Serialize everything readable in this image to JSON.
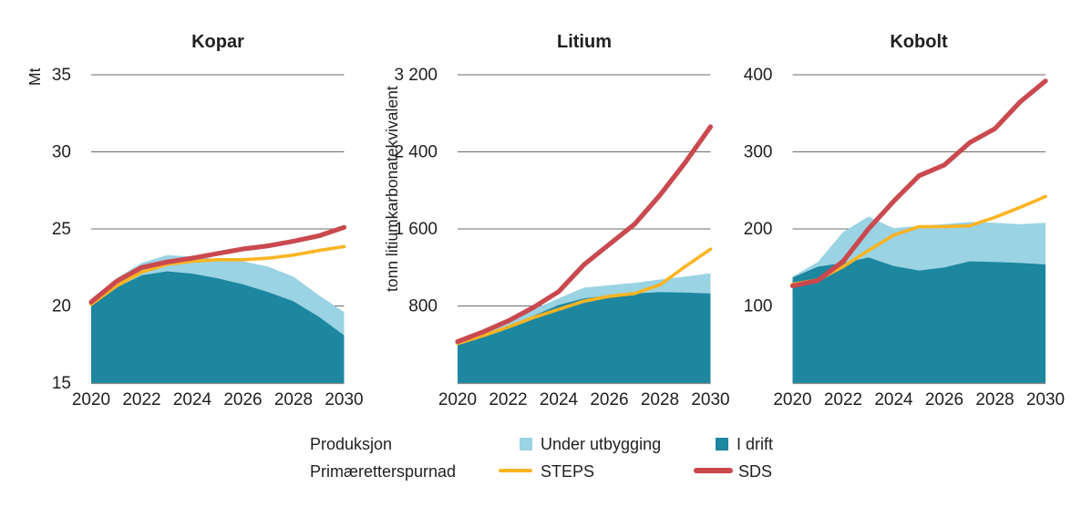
{
  "colors": {
    "background": "#ffffff",
    "text": "#1f1f1f",
    "gridline": "#6b6b6b",
    "baseline": "#8a8a8a",
    "i_drift": "#1d87a0",
    "under_utbygging": "#9ad3e3",
    "steps": "#fbb422",
    "sds": "#c9494f"
  },
  "chart_data": [
    {
      "type": "area",
      "title": "Kopar",
      "ylabel": "Mt",
      "x": [
        2020,
        2021,
        2022,
        2023,
        2024,
        2025,
        2026,
        2027,
        2028,
        2029,
        2030
      ],
      "xticks": [
        "2020",
        "2022",
        "2024",
        "2026",
        "2028",
        "2030"
      ],
      "ylim": [
        15,
        35
      ],
      "yticks": [
        {
          "value": 35,
          "label": "35"
        },
        {
          "value": 30,
          "label": "30"
        },
        {
          "value": 25,
          "label": "25"
        },
        {
          "value": 20,
          "label": "20"
        },
        {
          "value": 15,
          "label": "15"
        }
      ],
      "grid": true,
      "series": [
        {
          "name": "I drift",
          "kind": "area",
          "color": "#1d87a0",
          "values": [
            20.0,
            21.2,
            22.0,
            22.25,
            22.1,
            21.8,
            21.4,
            20.9,
            20.3,
            19.3,
            18.1
          ]
        },
        {
          "name": "Under utbygging",
          "kind": "stacked-area",
          "stacked_on": "I drift",
          "color": "#9ad3e3",
          "top_values": [
            20.3,
            21.8,
            22.8,
            23.3,
            23.2,
            23.05,
            22.9,
            22.55,
            21.9,
            20.7,
            19.6
          ]
        },
        {
          "name": "STEPS",
          "kind": "line",
          "color": "#fbb422",
          "values": [
            20.1,
            21.3,
            22.2,
            22.7,
            22.9,
            23.0,
            23.0,
            23.1,
            23.3,
            23.6,
            23.85
          ]
        },
        {
          "name": "SDS",
          "kind": "line",
          "color": "#c9494f",
          "values": [
            20.25,
            21.6,
            22.5,
            22.85,
            23.1,
            23.4,
            23.7,
            23.9,
            24.2,
            24.55,
            25.1
          ]
        }
      ]
    },
    {
      "type": "area",
      "title": "Litium",
      "ylabel": "tonn litiumkarbonatekvivalent",
      "x": [
        2020,
        2021,
        2022,
        2023,
        2024,
        2025,
        2026,
        2027,
        2028,
        2029,
        2030
      ],
      "xticks": [
        "2020",
        "2022",
        "2024",
        "2026",
        "2028",
        "2030"
      ],
      "ylim": [
        0,
        3200
      ],
      "yticks": [
        {
          "value": 3200,
          "label": "3 200"
        },
        {
          "value": 2400,
          "label": "2 400"
        },
        {
          "value": 1600,
          "label": "1 600"
        },
        {
          "value": 800,
          "label": "800"
        }
      ],
      "grid": true,
      "series": [
        {
          "name": "I drift",
          "kind": "area",
          "color": "#1d87a0",
          "values": [
            410,
            500,
            590,
            700,
            810,
            880,
            910,
            930,
            945,
            940,
            930
          ]
        },
        {
          "name": "Under utbygging",
          "kind": "stacked-area",
          "stacked_on": "I drift",
          "color": "#9ad3e3",
          "top_values": [
            415,
            515,
            625,
            765,
            880,
            990,
            1015,
            1040,
            1075,
            1105,
            1140
          ]
        },
        {
          "name": "STEPS",
          "kind": "line",
          "color": "#fbb422",
          "values": [
            410,
            490,
            580,
            680,
            765,
            850,
            900,
            930,
            1020,
            1210,
            1390
          ]
        },
        {
          "name": "SDS",
          "kind": "line",
          "color": "#c9494f",
          "values": [
            430,
            530,
            645,
            785,
            950,
            1230,
            1440,
            1650,
            1950,
            2290,
            2660
          ]
        }
      ]
    },
    {
      "type": "area",
      "title": "Kobolt",
      "ylabel": "",
      "x": [
        2020,
        2021,
        2022,
        2023,
        2024,
        2025,
        2026,
        2027,
        2028,
        2029,
        2030
      ],
      "xticks": [
        "2020",
        "2022",
        "2024",
        "2026",
        "2028",
        "2030"
      ],
      "ylim": [
        0,
        400
      ],
      "yticks": [
        {
          "value": 400,
          "label": "400"
        },
        {
          "value": 300,
          "label": "300"
        },
        {
          "value": 200,
          "label": "200"
        },
        {
          "value": 100,
          "label": "100"
        }
      ],
      "grid": true,
      "series": [
        {
          "name": "I drift",
          "kind": "area",
          "color": "#1d87a0",
          "values": [
            137,
            151,
            156,
            163,
            152,
            146,
            150,
            158,
            157,
            156,
            154
          ]
        },
        {
          "name": "Under utbygging",
          "kind": "stacked-area",
          "stacked_on": "I drift",
          "color": "#9ad3e3",
          "top_values": [
            138,
            157,
            196,
            216,
            201,
            204,
            206,
            209,
            208,
            206,
            208
          ]
        },
        {
          "name": "STEPS",
          "kind": "line",
          "color": "#fbb422",
          "values": [
            128,
            134,
            151,
            172,
            192,
            203,
            203,
            204,
            215,
            228,
            242
          ]
        },
        {
          "name": "SDS",
          "kind": "line",
          "color": "#c9494f",
          "values": [
            126,
            133,
            158,
            200,
            236,
            269,
            283,
            312,
            330,
            365,
            392
          ]
        }
      ]
    }
  ],
  "legend": {
    "rows": [
      {
        "label": "Produksjon",
        "items": [
          {
            "swatch": "square",
            "color": "#9ad3e3",
            "label": "Under utbygging"
          },
          {
            "swatch": "square",
            "color": "#1d87a0",
            "label": "I drift"
          }
        ]
      },
      {
        "label": "Primæretterspurnad",
        "items": [
          {
            "swatch": "line",
            "color": "#fbb422",
            "label": "STEPS"
          },
          {
            "swatch": "line",
            "color": "#c9494f",
            "label": "SDS"
          }
        ]
      }
    ]
  }
}
